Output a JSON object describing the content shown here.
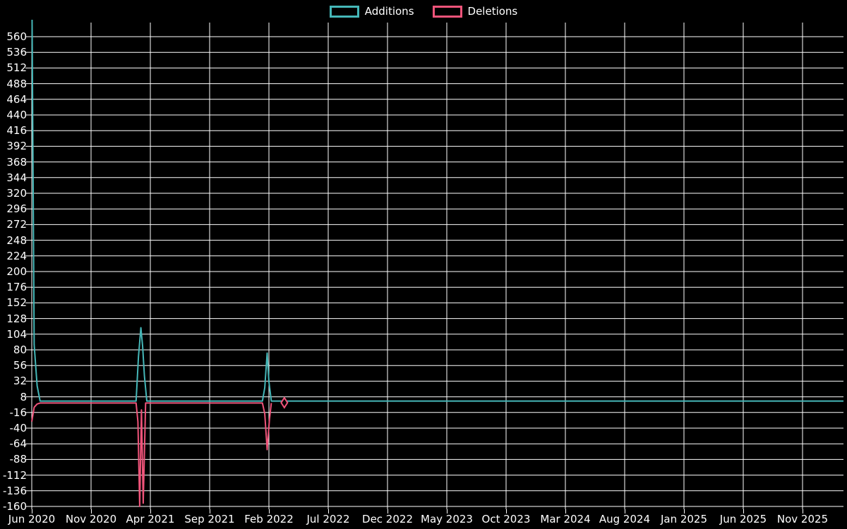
{
  "legend": {
    "items": [
      {
        "label": "Additions",
        "color": "#45b7b8"
      },
      {
        "label": "Deletions",
        "color": "#f0547a"
      }
    ]
  },
  "colors": {
    "background": "#000000",
    "grid": "#ffffff",
    "text": "#ffffff",
    "additions": "#45b7b8",
    "deletions": "#f0547a"
  },
  "chart_data": {
    "type": "line",
    "title": "",
    "xlabel": "",
    "ylabel": "",
    "grid": true,
    "legend_position": "top-center",
    "x_unit": "months since Jun 2020 (ticks every 5 months)",
    "x_tick_labels": [
      "Jun 2020",
      "Nov 2020",
      "Apr 2021",
      "Sep 2021",
      "Feb 2022",
      "Jul 2022",
      "Dec 2022",
      "May 2023",
      "Oct 2023",
      "Mar 2024",
      "Aug 2024",
      "Jan 2025",
      "Jun 2025",
      "Nov 2025"
    ],
    "y_ticks": [
      560,
      536,
      512,
      488,
      464,
      440,
      416,
      392,
      368,
      344,
      320,
      296,
      272,
      248,
      224,
      200,
      176,
      152,
      128,
      104,
      80,
      56,
      32,
      8,
      -16,
      -40,
      -64,
      -88,
      -112,
      -136,
      -160
    ],
    "ylim": [
      -160,
      560
    ],
    "notes": "Additions spike at Jun 2020 exceeds the top of the plot (clipped above 560). Deletions series ends with an isolated diamond-marker point around Mar 2022.",
    "series": [
      {
        "name": "Additions",
        "color": "#45b7b8",
        "points": [
          [
            0,
            660
          ],
          [
            0.2,
            88
          ],
          [
            0.45,
            25
          ],
          [
            0.7,
            1.5
          ],
          [
            8.8,
            1.5
          ],
          [
            9.0,
            70
          ],
          [
            9.2,
            114
          ],
          [
            9.35,
            85
          ],
          [
            9.5,
            40
          ],
          [
            9.7,
            1.5
          ],
          [
            19.45,
            1.5
          ],
          [
            19.65,
            22
          ],
          [
            19.85,
            75
          ],
          [
            20.0,
            31
          ],
          [
            20.2,
            1.5
          ],
          [
            68.45,
            1.5
          ]
        ]
      },
      {
        "name": "Deletions",
        "color": "#f0547a",
        "points": [
          [
            0,
            -30
          ],
          [
            0.2,
            -8
          ],
          [
            0.45,
            -3
          ],
          [
            0.7,
            -1.5
          ],
          [
            8.8,
            -1.5
          ],
          [
            8.95,
            -30
          ],
          [
            9.1,
            -160
          ],
          [
            9.25,
            -12
          ],
          [
            9.4,
            -155
          ],
          [
            9.6,
            -1.5
          ],
          [
            19.45,
            -1.5
          ],
          [
            19.65,
            -18
          ],
          [
            19.85,
            -73
          ],
          [
            20.05,
            -26
          ],
          [
            20.2,
            -1.5
          ]
        ],
        "isolated_point": {
          "x": 21.3,
          "y": -1,
          "marker": "diamond"
        }
      }
    ]
  }
}
